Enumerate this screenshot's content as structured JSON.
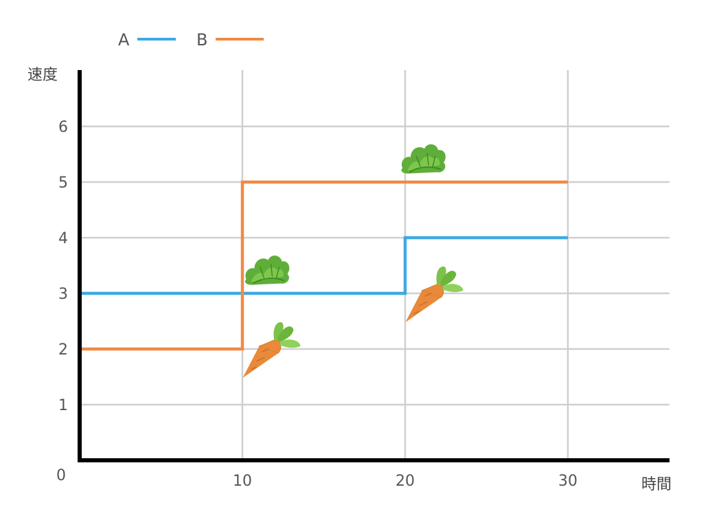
{
  "chart_data": {
    "type": "line",
    "step": true,
    "xlabel": "時間",
    "ylabel": "速度",
    "xlim": [
      0,
      36
    ],
    "ylim": [
      0,
      7
    ],
    "x_ticks": [
      10,
      20,
      30
    ],
    "y_ticks": [
      1,
      2,
      3,
      4,
      5,
      6
    ],
    "origin_label": "0",
    "grid": true,
    "legend_position": "top-left",
    "series": [
      {
        "name": "A",
        "color": "#3fa9e2",
        "points": [
          [
            0,
            3
          ],
          [
            20,
            3
          ],
          [
            20,
            4
          ],
          [
            30,
            4
          ]
        ]
      },
      {
        "name": "B",
        "color": "#f08a45",
        "points": [
          [
            0,
            2
          ],
          [
            10,
            2
          ],
          [
            10,
            5
          ],
          [
            30,
            5
          ]
        ]
      }
    ],
    "annotations": [
      {
        "icon": "carrot-icon",
        "x": 11.2,
        "y": 2.0
      },
      {
        "icon": "lettuce-icon",
        "x": 11.5,
        "y": 3.4
      },
      {
        "icon": "carrot-icon",
        "x": 21.2,
        "y": 3.0
      },
      {
        "icon": "lettuce-icon",
        "x": 21.1,
        "y": 5.4
      }
    ]
  }
}
